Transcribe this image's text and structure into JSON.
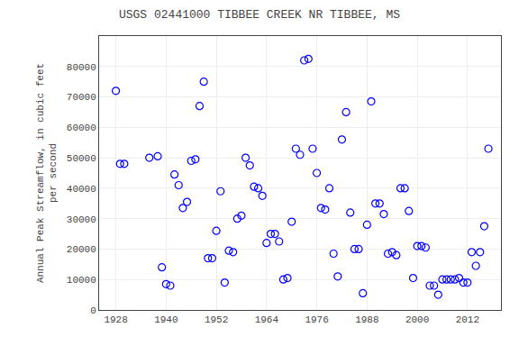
{
  "chart_data": {
    "type": "scatter",
    "title": "USGS 02441000 TIBBEE CREEK NR TIBBEE, MS",
    "y_label": "Annual Peak Streamflow, in cubic feet\nper second",
    "x": [
      1928,
      1929,
      1930,
      1936,
      1938,
      1939,
      1940,
      1941,
      1942,
      1943,
      1944,
      1945,
      1946,
      1947,
      1948,
      1949,
      1950,
      1951,
      1952,
      1953,
      1954,
      1955,
      1956,
      1957,
      1958,
      1959,
      1960,
      1961,
      1962,
      1963,
      1964,
      1965,
      1966,
      1967,
      1968,
      1969,
      1970,
      1971,
      1972,
      1973,
      1974,
      1975,
      1976,
      1977,
      1978,
      1979,
      1980,
      1981,
      1982,
      1983,
      1984,
      1985,
      1986,
      1987,
      1988,
      1989,
      1990,
      1991,
      1992,
      1993,
      1994,
      1995,
      1996,
      1997,
      1998,
      1999,
      2000,
      2001,
      2002,
      2003,
      2004,
      2005,
      2006,
      2007,
      2008,
      2009,
      2010,
      2011,
      2012,
      2013,
      2014,
      2015,
      2016,
      2017
    ],
    "values": [
      72000,
      48000,
      48000,
      50000,
      50500,
      14000,
      8500,
      8000,
      44500,
      41000,
      33500,
      35500,
      49000,
      49500,
      67000,
      75000,
      17000,
      17000,
      26000,
      39000,
      9000,
      19500,
      19000,
      30000,
      31000,
      50000,
      47500,
      40500,
      40000,
      37500,
      22000,
      25000,
      25000,
      22500,
      10000,
      10500,
      29000,
      53000,
      51000,
      82000,
      82500,
      53000,
      45000,
      33500,
      33000,
      40000,
      18500,
      11000,
      56000,
      65000,
      32000,
      20000,
      20000,
      5500,
      28000,
      68500,
      35000,
      35000,
      31500,
      18500,
      19000,
      18000,
      40000,
      40000,
      32500,
      10500,
      21000,
      21000,
      20500,
      8000,
      8000,
      5000,
      10000,
      10000,
      10000,
      10000,
      10500,
      9000,
      9000,
      19000,
      14500,
      19000,
      27500,
      53000
    ],
    "color": "blue",
    "marker": "circle-open",
    "xlim": [
      1924,
      2020
    ],
    "ylim": [
      0,
      90000
    ],
    "xticks": [
      1928,
      1940,
      1952,
      1964,
      1976,
      1988,
      2000,
      2012
    ],
    "yticks": [
      0,
      10000,
      20000,
      30000,
      40000,
      50000,
      60000,
      70000,
      80000
    ],
    "grid": true
  }
}
